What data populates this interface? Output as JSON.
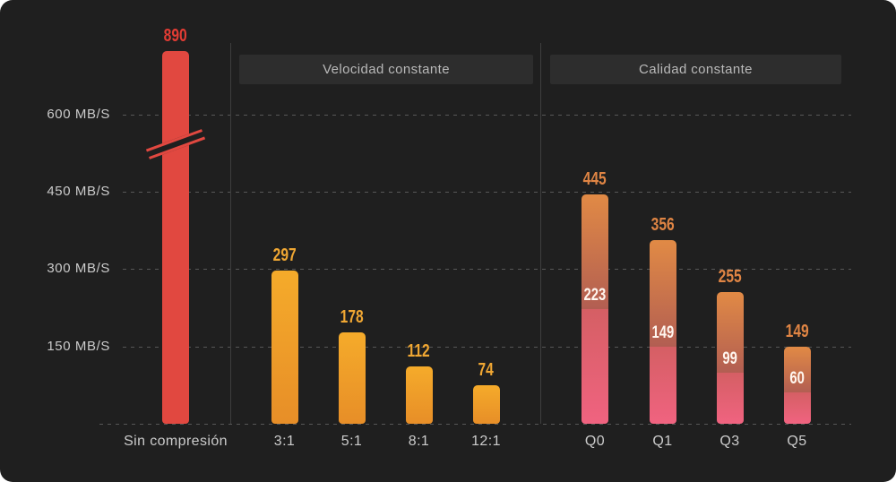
{
  "chart_data": {
    "type": "bar",
    "title": "",
    "ylabel": "MB/S",
    "unit": "MB/S",
    "y_ticks": [
      600,
      450,
      300,
      150
    ],
    "y_tick_labels": [
      "600 MB/S",
      "450 MB/S",
      "300 MB/S",
      "150 MB/S"
    ],
    "grid": "dashed horizontal gridlines, dashed baseline",
    "legend": "none",
    "axis_break": {
      "present": true,
      "between": [
        450,
        600
      ],
      "note": "first bar (890) drawn not to scale with slash break mark"
    },
    "groups": [
      {
        "name": "",
        "style": "red-solid",
        "bars": [
          {
            "label": "Sin compresión",
            "value": 890,
            "broken_axis": true
          }
        ]
      },
      {
        "name": "Velocidad constante",
        "style": "orange-gradient",
        "bars": [
          {
            "label": "3:1",
            "value": 297
          },
          {
            "label": "5:1",
            "value": 178
          },
          {
            "label": "8:1",
            "value": 112
          },
          {
            "label": "12:1",
            "value": 74
          }
        ]
      },
      {
        "name": "Calidad constante",
        "style": "orange-pink-stacked",
        "bars": [
          {
            "label": "Q0",
            "value": 445,
            "inner_value": 223
          },
          {
            "label": "Q1",
            "value": 356,
            "inner_value": 149
          },
          {
            "label": "Q3",
            "value": 255,
            "inner_value": 99
          },
          {
            "label": "Q5",
            "value": 149,
            "inner_value": 60
          }
        ]
      }
    ],
    "colors": {
      "background": "#1f1f1f",
      "red_bar": "#e14840",
      "red_label": "#e23c34",
      "orange_top": "#f5ab2a",
      "orange_bottom": "#e78e28",
      "orange_label": "#f0a733",
      "quality_top": "#e18a45",
      "quality_mid": "#b25e52",
      "quality_pink_top": "#d55f64",
      "quality_pink_bottom": "#f06380",
      "quality_label": "#e08544",
      "inner_label": "#fff6ef",
      "grid": "#575757",
      "divider": "#3e3e3e",
      "header_bg": "#2d2d2d",
      "header_text": "#b9b9b9",
      "axis_text": "#cbcbcb"
    }
  }
}
